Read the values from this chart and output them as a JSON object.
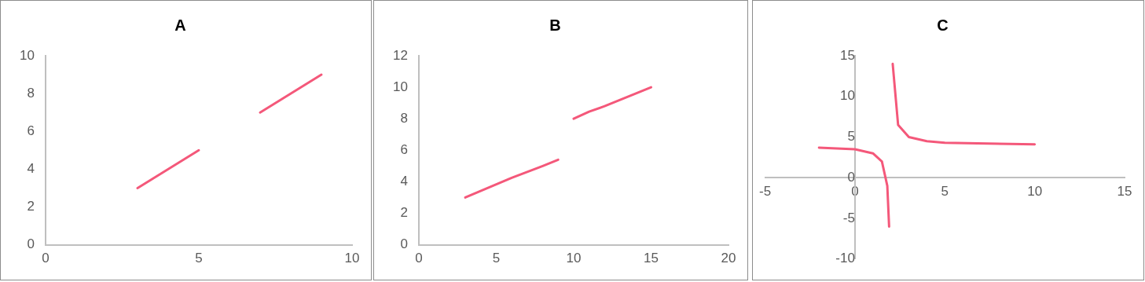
{
  "chart_data": [
    {
      "type": "line",
      "title": "A",
      "xlim": [
        0,
        10
      ],
      "xticks": [
        0,
        5,
        10
      ],
      "ylim": [
        0,
        10
      ],
      "yticks": [
        0,
        2,
        4,
        6,
        8,
        10
      ],
      "grid": false,
      "legend": false,
      "marker": "none",
      "line_style": "solid",
      "series": [
        {
          "color": "#f4587a",
          "x": [
            3,
            5
          ],
          "values": [
            3,
            5
          ]
        },
        {
          "color": "#f4587a",
          "x": [
            7,
            9
          ],
          "values": [
            7,
            9
          ]
        }
      ]
    },
    {
      "type": "line",
      "title": "B",
      "xlim": [
        0,
        20
      ],
      "xticks": [
        0,
        5,
        10,
        15,
        20
      ],
      "ylim": [
        0,
        12
      ],
      "yticks": [
        0,
        2,
        4,
        6,
        8,
        10,
        12
      ],
      "grid": false,
      "legend": false,
      "marker": "none",
      "line_style": "solid",
      "series": [
        {
          "color": "#f4587a",
          "x": [
            3,
            6,
            8,
            9
          ],
          "values": [
            3,
            4.25,
            5,
            5.4
          ]
        },
        {
          "color": "#f4587a",
          "x": [
            10,
            11,
            12,
            15
          ],
          "values": [
            8,
            8.45,
            8.8,
            10
          ]
        }
      ]
    },
    {
      "type": "line",
      "title": "C",
      "xlim": [
        -5,
        15
      ],
      "xticks": [
        -5,
        0,
        5,
        10,
        15
      ],
      "ylim": [
        -10,
        15
      ],
      "yticks": [
        -10,
        -5,
        0,
        5,
        10,
        15
      ],
      "grid": false,
      "legend": false,
      "marker": "none",
      "line_style": "solid",
      "series": [
        {
          "color": "#f4587a",
          "x": [
            -2,
            0,
            1,
            1.5,
            1.8,
            1.9
          ],
          "values": [
            3.7,
            3.5,
            3,
            2,
            -1,
            -6
          ]
        },
        {
          "color": "#f4587a",
          "x": [
            2.1,
            2.4,
            3,
            4,
            5,
            10
          ],
          "values": [
            14,
            6.5,
            5,
            4.5,
            4.3,
            4.1
          ]
        }
      ]
    }
  ]
}
